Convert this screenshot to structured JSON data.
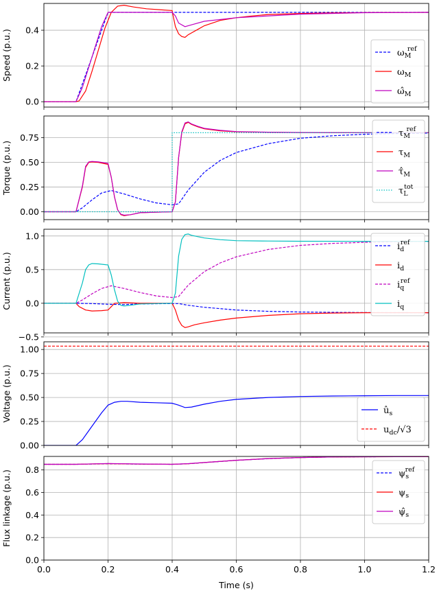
{
  "chart_data": [
    {
      "type": "line",
      "ylabel": "Speed (p.u.)",
      "xlim": [
        0.0,
        1.2
      ],
      "ylim": [
        -0.03,
        0.55
      ],
      "yticks": [
        0.0,
        0.2,
        0.4
      ],
      "ytick_labels": [
        "0.0",
        "0.2",
        "0.4"
      ],
      "grid": true,
      "legend_loc": "lower-right",
      "series": [
        {
          "name": "ω_M^ref",
          "color": "#0000ff",
          "dash": "dashed",
          "x": [
            0,
            0.1,
            0.2,
            1.2
          ],
          "y": [
            0,
            0,
            0.5,
            0.5
          ]
        },
        {
          "name": "ω_M",
          "color": "#ff0000",
          "dash": "solid",
          "x": [
            0,
            0.1,
            0.11,
            0.13,
            0.15,
            0.17,
            0.19,
            0.21,
            0.23,
            0.25,
            0.28,
            0.32,
            0.36,
            0.4,
            0.402,
            0.41,
            0.42,
            0.43,
            0.44,
            0.45,
            0.46,
            0.48,
            0.5,
            0.55,
            0.6,
            0.65,
            0.7,
            0.8,
            0.9,
            1.0,
            1.2
          ],
          "y": [
            0,
            0,
            0.005,
            0.06,
            0.17,
            0.29,
            0.41,
            0.5,
            0.535,
            0.54,
            0.53,
            0.52,
            0.515,
            0.51,
            0.49,
            0.42,
            0.38,
            0.365,
            0.36,
            0.375,
            0.385,
            0.405,
            0.425,
            0.455,
            0.47,
            0.48,
            0.488,
            0.494,
            0.497,
            0.499,
            0.5
          ]
        },
        {
          "name": "ω̂_M",
          "color": "#bf00bf",
          "dash": "solid",
          "x": [
            0,
            0.1,
            0.12,
            0.15,
            0.18,
            0.2,
            0.4,
            0.41,
            0.42,
            0.44,
            0.46,
            0.5,
            0.6,
            0.8,
            1.0,
            1.2
          ],
          "y": [
            0,
            0,
            0.08,
            0.25,
            0.42,
            0.5,
            0.5,
            0.48,
            0.44,
            0.42,
            0.43,
            0.45,
            0.47,
            0.49,
            0.498,
            0.5
          ]
        }
      ]
    },
    {
      "type": "line",
      "ylabel": "Torque (p.u.)",
      "xlim": [
        0.0,
        1.2
      ],
      "ylim": [
        -0.08,
        0.97
      ],
      "yticks": [
        0.0,
        0.25,
        0.5,
        0.75
      ],
      "ytick_labels": [
        "0.00",
        "0.25",
        "0.50",
        "0.75"
      ],
      "grid": true,
      "legend_loc": "upper-right",
      "series": [
        {
          "name": "τ_M^ref",
          "color": "#0000ff",
          "dash": "dashed",
          "x": [
            0,
            0.1,
            0.12,
            0.15,
            0.18,
            0.21,
            0.25,
            0.3,
            0.35,
            0.4,
            0.42,
            0.45,
            0.5,
            0.55,
            0.6,
            0.7,
            0.8,
            0.9,
            1.0,
            1.1,
            1.2
          ],
          "y": [
            0,
            0,
            0.04,
            0.12,
            0.19,
            0.215,
            0.18,
            0.13,
            0.09,
            0.07,
            0.08,
            0.22,
            0.4,
            0.52,
            0.6,
            0.69,
            0.745,
            0.77,
            0.785,
            0.792,
            0.797
          ]
        },
        {
          "name": "τ_M",
          "color": "#ff0000",
          "dash": "solid",
          "x": [
            0,
            0.1,
            0.12,
            0.13,
            0.14,
            0.15,
            0.17,
            0.2,
            0.21,
            0.22,
            0.23,
            0.24,
            0.25,
            0.27,
            0.3,
            0.35,
            0.4,
            0.41,
            0.42,
            0.43,
            0.44,
            0.45,
            0.46,
            0.48,
            0.5,
            0.55,
            0.6,
            0.7,
            0.8,
            1.0,
            1.2
          ],
          "y": [
            0,
            0,
            0.25,
            0.45,
            0.5,
            0.505,
            0.5,
            0.48,
            0.35,
            0.15,
            0.02,
            -0.03,
            -0.04,
            -0.03,
            -0.01,
            -0.005,
            0,
            0.1,
            0.55,
            0.8,
            0.89,
            0.905,
            0.885,
            0.86,
            0.84,
            0.82,
            0.81,
            0.805,
            0.802,
            0.8,
            0.8
          ]
        },
        {
          "name": "τ̂_M",
          "color": "#bf00bf",
          "dash": "solid",
          "x": [
            0,
            0.1,
            0.12,
            0.13,
            0.14,
            0.15,
            0.17,
            0.2,
            0.21,
            0.22,
            0.23,
            0.24,
            0.25,
            0.27,
            0.3,
            0.35,
            0.4,
            0.41,
            0.42,
            0.43,
            0.44,
            0.45,
            0.46,
            0.48,
            0.5,
            0.55,
            0.6,
            0.7,
            0.8,
            1.0,
            1.2
          ],
          "y": [
            0,
            0,
            0.26,
            0.46,
            0.505,
            0.51,
            0.505,
            0.49,
            0.35,
            0.15,
            0.02,
            -0.025,
            -0.035,
            -0.03,
            -0.01,
            -0.005,
            0,
            0.1,
            0.55,
            0.81,
            0.9,
            0.91,
            0.89,
            0.865,
            0.845,
            0.825,
            0.812,
            0.806,
            0.803,
            0.801,
            0.8
          ]
        },
        {
          "name": "τ_L^tot",
          "color": "#00bfbf",
          "dash": "dotted",
          "x": [
            0,
            0.4,
            0.4,
            1.2
          ],
          "y": [
            0,
            0,
            0.8,
            0.8
          ]
        }
      ]
    },
    {
      "type": "line",
      "ylabel": "Current (p.u.)",
      "xlim": [
        0.0,
        1.2
      ],
      "ylim": [
        -0.44,
        1.1
      ],
      "yticks": [
        -0.5,
        0.0,
        0.5,
        1.0
      ],
      "ytick_labels": [
        "−0.5",
        "0.0",
        "0.5",
        "1.0"
      ],
      "grid": true,
      "legend_loc": "upper-right",
      "series": [
        {
          "name": "i_d^ref",
          "color": "#0000ff",
          "dash": "dashed",
          "x": [
            0,
            0.1,
            0.15,
            0.2,
            0.25,
            0.3,
            0.4,
            0.42,
            0.45,
            0.5,
            0.6,
            0.7,
            0.8,
            0.9,
            1.0,
            1.2
          ],
          "y": [
            0,
            0,
            -0.005,
            -0.015,
            -0.02,
            -0.01,
            -0.005,
            -0.005,
            -0.03,
            -0.06,
            -0.1,
            -0.12,
            -0.13,
            -0.135,
            -0.138,
            -0.14
          ]
        },
        {
          "name": "i_d",
          "color": "#ff0000",
          "dash": "solid",
          "x": [
            0,
            0.1,
            0.11,
            0.13,
            0.15,
            0.18,
            0.2,
            0.21,
            0.22,
            0.25,
            0.3,
            0.4,
            0.41,
            0.42,
            0.43,
            0.44,
            0.45,
            0.47,
            0.5,
            0.55,
            0.6,
            0.7,
            0.8,
            0.9,
            1.0,
            1.2
          ],
          "y": [
            0,
            0,
            -0.05,
            -0.1,
            -0.115,
            -0.11,
            -0.1,
            -0.05,
            0.0,
            0.01,
            0.0,
            0.0,
            -0.1,
            -0.25,
            -0.33,
            -0.36,
            -0.35,
            -0.32,
            -0.29,
            -0.25,
            -0.22,
            -0.18,
            -0.155,
            -0.145,
            -0.14,
            -0.14
          ]
        },
        {
          "name": "i_q^ref",
          "color": "#bf00bf",
          "dash": "dashed",
          "x": [
            0,
            0.1,
            0.12,
            0.15,
            0.18,
            0.21,
            0.25,
            0.3,
            0.35,
            0.4,
            0.42,
            0.45,
            0.5,
            0.55,
            0.6,
            0.7,
            0.8,
            0.9,
            1.0,
            1.1,
            1.2
          ],
          "y": [
            0,
            0,
            0.05,
            0.14,
            0.22,
            0.26,
            0.22,
            0.16,
            0.11,
            0.085,
            0.1,
            0.27,
            0.47,
            0.6,
            0.69,
            0.8,
            0.86,
            0.89,
            0.905,
            0.915,
            0.92
          ]
        },
        {
          "name": "i_q",
          "color": "#00bfbf",
          "dash": "solid",
          "x": [
            0,
            0.1,
            0.12,
            0.13,
            0.14,
            0.15,
            0.17,
            0.2,
            0.21,
            0.22,
            0.23,
            0.24,
            0.25,
            0.27,
            0.3,
            0.35,
            0.4,
            0.41,
            0.42,
            0.43,
            0.44,
            0.45,
            0.46,
            0.48,
            0.5,
            0.55,
            0.6,
            0.7,
            0.8,
            1.0,
            1.2
          ],
          "y": [
            0,
            0,
            0.3,
            0.5,
            0.57,
            0.59,
            0.585,
            0.57,
            0.42,
            0.2,
            0.03,
            -0.03,
            -0.04,
            -0.03,
            -0.01,
            -0.005,
            0,
            0.15,
            0.7,
            0.95,
            1.02,
            1.03,
            1.01,
            0.99,
            0.97,
            0.945,
            0.93,
            0.925,
            0.922,
            0.92,
            0.92
          ]
        }
      ]
    },
    {
      "type": "line",
      "ylabel": "Voltage (p.u.)",
      "xlim": [
        0.0,
        1.2
      ],
      "ylim": [
        0.0,
        1.08
      ],
      "yticks": [
        0.0,
        0.25,
        0.5,
        0.75,
        1.0
      ],
      "ytick_labels": [
        "0.00",
        "0.25",
        "0.50",
        "0.75",
        "1.00"
      ],
      "grid": true,
      "legend_loc": "lower-right",
      "series": [
        {
          "name": "û_s",
          "color": "#0000ff",
          "dash": "solid",
          "x": [
            0,
            0.1,
            0.12,
            0.15,
            0.18,
            0.2,
            0.22,
            0.24,
            0.26,
            0.3,
            0.35,
            0.4,
            0.42,
            0.44,
            0.46,
            0.5,
            0.55,
            0.6,
            0.7,
            0.8,
            0.9,
            1.0,
            1.1,
            1.2
          ],
          "y": [
            0,
            0,
            0.06,
            0.2,
            0.34,
            0.42,
            0.45,
            0.46,
            0.46,
            0.45,
            0.445,
            0.44,
            0.42,
            0.395,
            0.4,
            0.43,
            0.46,
            0.48,
            0.5,
            0.51,
            0.515,
            0.518,
            0.52,
            0.52
          ]
        },
        {
          "name": "u_dc/√3",
          "color": "#ff0000",
          "dash": "dashed",
          "x": [
            0,
            1.2
          ],
          "y": [
            1.035,
            1.035
          ]
        }
      ]
    },
    {
      "type": "line",
      "ylabel": "Flux linkage (p.u.)",
      "xlabel": "Time (s)",
      "xlim": [
        0.0,
        1.2
      ],
      "ylim": [
        0.0,
        0.92
      ],
      "yticks": [
        0.0,
        0.2,
        0.4,
        0.6,
        0.8
      ],
      "ytick_labels": [
        "0.0",
        "0.2",
        "0.4",
        "0.6",
        "0.8"
      ],
      "xticks": [
        0.0,
        0.2,
        0.4,
        0.6,
        0.8,
        1.0,
        1.2
      ],
      "xtick_labels": [
        "0.0",
        "0.2",
        "0.4",
        "0.6",
        "0.8",
        "1.0",
        "1.2"
      ],
      "grid": true,
      "legend_loc": "upper-right",
      "series": [
        {
          "name": "ψ_s^ref",
          "color": "#0000ff",
          "dash": "dashed",
          "x": [
            0,
            0.1,
            0.2,
            0.3,
            0.4,
            0.45,
            0.5,
            0.6,
            0.7,
            0.8,
            0.9,
            1.0,
            1.2
          ],
          "y": [
            0.85,
            0.85,
            0.855,
            0.852,
            0.85,
            0.855,
            0.865,
            0.885,
            0.9,
            0.91,
            0.915,
            0.917,
            0.918
          ]
        },
        {
          "name": "ψ_s",
          "color": "#ff0000",
          "dash": "solid",
          "x": [
            0,
            0.1,
            0.2,
            0.3,
            0.4,
            0.45,
            0.5,
            0.6,
            0.7,
            0.8,
            0.9,
            1.0,
            1.2
          ],
          "y": [
            0.85,
            0.85,
            0.856,
            0.852,
            0.85,
            0.855,
            0.866,
            0.886,
            0.901,
            0.91,
            0.915,
            0.917,
            0.918
          ]
        },
        {
          "name": "ψ̂_s",
          "color": "#bf00bf",
          "dash": "solid",
          "x": [
            0,
            0.1,
            0.2,
            0.3,
            0.4,
            0.45,
            0.5,
            0.6,
            0.7,
            0.8,
            0.9,
            1.0,
            1.2
          ],
          "y": [
            0.85,
            0.85,
            0.857,
            0.853,
            0.85,
            0.856,
            0.866,
            0.886,
            0.901,
            0.91,
            0.915,
            0.917,
            0.918
          ]
        }
      ]
    }
  ],
  "legends": [
    [
      {
        "base": "ω",
        "sub": "M",
        "sup": "ref"
      },
      {
        "base": "ω",
        "sub": "M",
        "sup": ""
      },
      {
        "base": "ω̂",
        "sub": "M",
        "sup": ""
      }
    ],
    [
      {
        "base": "τ",
        "sub": "M",
        "sup": "ref"
      },
      {
        "base": "τ",
        "sub": "M",
        "sup": ""
      },
      {
        "base": "τ̂",
        "sub": "M",
        "sup": ""
      },
      {
        "base": "τ",
        "sub": "L",
        "sup": "tot"
      }
    ],
    [
      {
        "base": "i",
        "sub": "d",
        "sup": "ref"
      },
      {
        "base": "i",
        "sub": "d",
        "sup": ""
      },
      {
        "base": "i",
        "sub": "q",
        "sup": "ref"
      },
      {
        "base": "i",
        "sub": "q",
        "sup": ""
      }
    ],
    [
      {
        "base": "û",
        "sub": "s",
        "sup": ""
      },
      {
        "base": "u",
        "sub": "dc",
        "sup": "",
        "tail": "/√3"
      }
    ],
    [
      {
        "base": "ψ",
        "sub": "s",
        "sup": "ref"
      },
      {
        "base": "ψ",
        "sub": "s",
        "sup": ""
      },
      {
        "base": "ψ̂",
        "sub": "s",
        "sup": ""
      }
    ]
  ]
}
